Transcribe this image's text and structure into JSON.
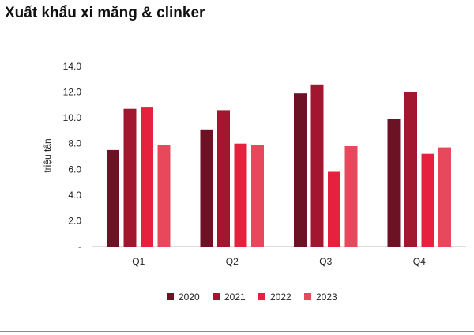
{
  "chart_data": {
    "type": "bar",
    "title": "Xuất khẩu xi măng & clinker",
    "xlabel": "",
    "ylabel": "triệu tấn",
    "categories": [
      "Q1",
      "Q2",
      "Q3",
      "Q4"
    ],
    "ylim": [
      0,
      14
    ],
    "yticks": [
      "-",
      "2.0",
      "4.0",
      "6.0",
      "8.0",
      "10.0",
      "12.0",
      "14.0"
    ],
    "grid": false,
    "legend_position": "bottom",
    "series": [
      {
        "name": "2020",
        "color": "#6d1124",
        "values": [
          7.5,
          9.1,
          11.9,
          9.9
        ]
      },
      {
        "name": "2021",
        "color": "#a3162f",
        "values": [
          10.7,
          10.6,
          12.6,
          12.0
        ]
      },
      {
        "name": "2022",
        "color": "#e5213e",
        "values": [
          10.8,
          8.0,
          5.8,
          7.2
        ]
      },
      {
        "name": "2023",
        "color": "#e8485c",
        "values": [
          7.9,
          7.9,
          7.8,
          7.7
        ]
      }
    ]
  }
}
